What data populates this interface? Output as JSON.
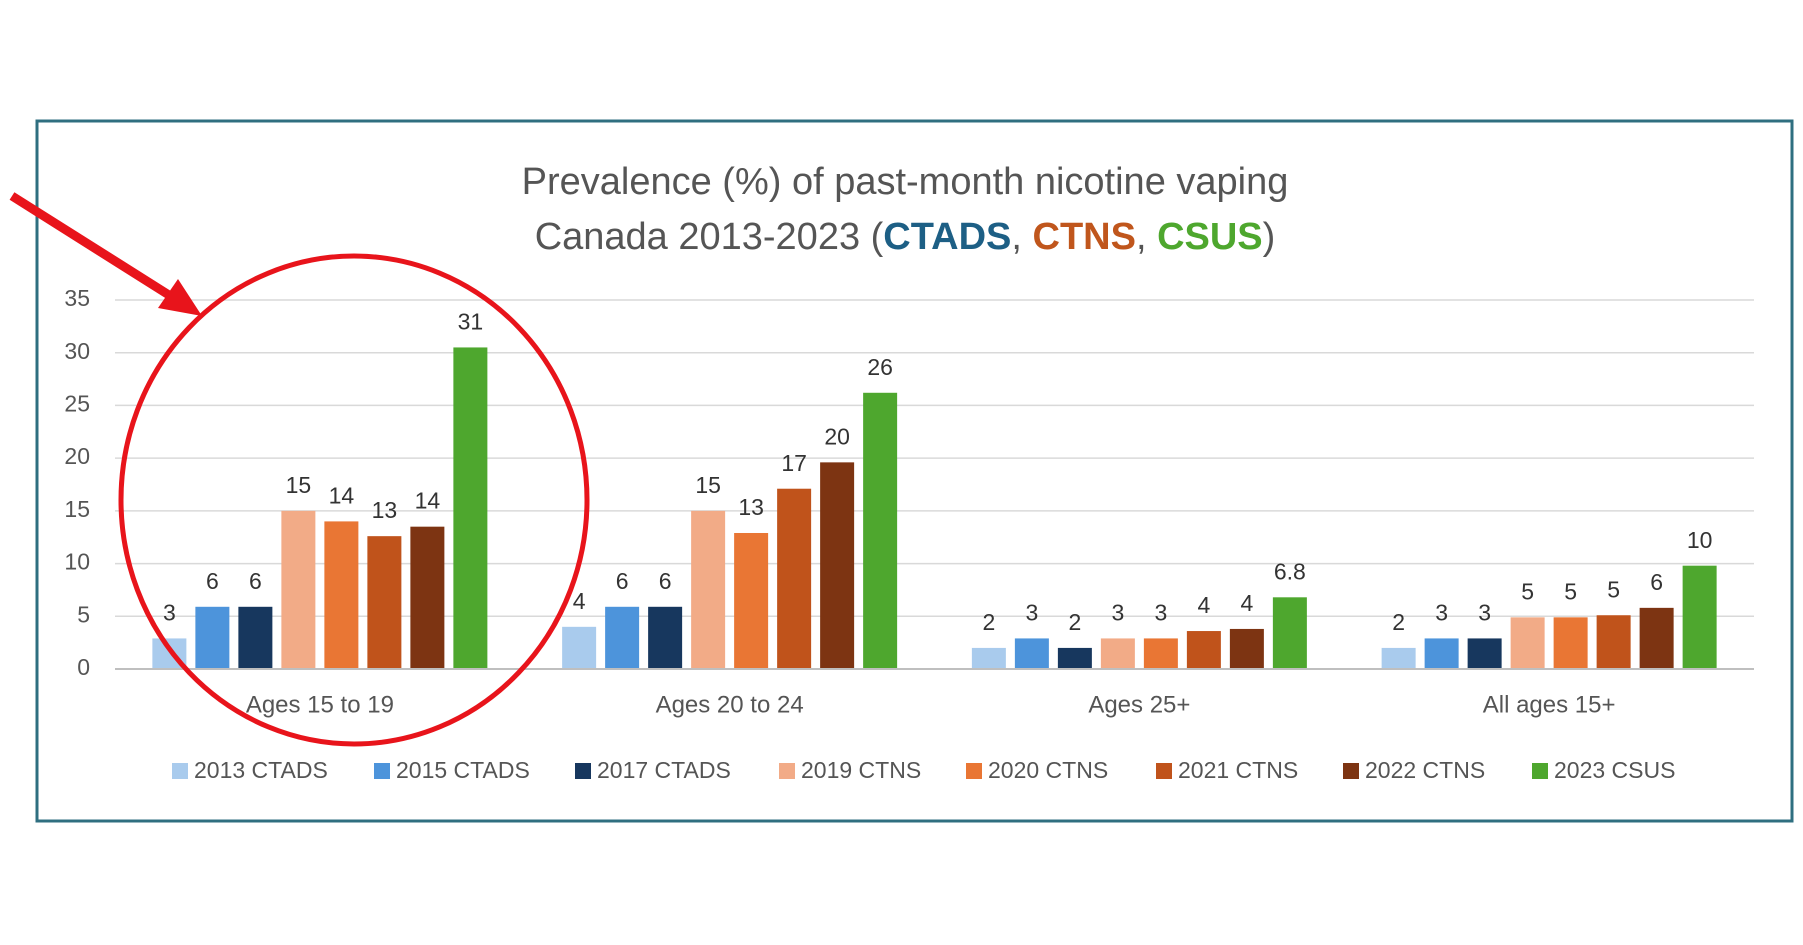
{
  "chart_data": {
    "type": "bar",
    "title": "Prevalence (%) of past-month nicotine vaping",
    "subtitle": [
      {
        "text": "Canada 2013-2023 ("
      },
      {
        "text": "CTADS",
        "color": "#1d5f85"
      },
      {
        "text": ", "
      },
      {
        "text": "CTNS",
        "color": "#c0561c"
      },
      {
        "text": ", "
      },
      {
        "text": "CSUS",
        "color": "#4ea72e"
      },
      {
        "text": ")"
      }
    ],
    "categories": [
      "Ages 15 to 19",
      "Ages 20 to 24",
      "Ages 25+",
      "All ages 15+"
    ],
    "series": [
      {
        "name": "2013 CTADS",
        "color": "#a9cbed",
        "values": [
          2.9,
          4.0,
          2.0,
          2.0
        ],
        "value_labels": [
          "3",
          "4",
          "2",
          "2"
        ]
      },
      {
        "name": "2015 CTADS",
        "color": "#4d94db",
        "values": [
          5.9,
          5.9,
          2.9,
          2.9
        ],
        "value_labels": [
          "6",
          "6",
          "3",
          "3"
        ]
      },
      {
        "name": "2017 CTADS",
        "color": "#17375e",
        "values": [
          5.9,
          5.9,
          2.0,
          2.9
        ],
        "value_labels": [
          "6",
          "6",
          "2",
          "3"
        ]
      },
      {
        "name": "2019 CTNS",
        "color": "#f2ab87",
        "values": [
          15.0,
          15.0,
          2.9,
          4.9
        ],
        "value_labels": [
          "15",
          "15",
          "3",
          "5"
        ]
      },
      {
        "name": "2020 CTNS",
        "color": "#e97634",
        "values": [
          14.0,
          12.9,
          2.9,
          4.9
        ],
        "value_labels": [
          "14",
          "13",
          "3",
          "5"
        ]
      },
      {
        "name": "2021 CTNS",
        "color": "#c0531b",
        "values": [
          12.6,
          17.1,
          3.6,
          5.1
        ],
        "value_labels": [
          "13",
          "17",
          "4",
          "5"
        ]
      },
      {
        "name": "2022 CTNS",
        "color": "#7d3412",
        "values": [
          13.5,
          19.6,
          3.8,
          5.8
        ],
        "value_labels": [
          "14",
          "20",
          "4",
          "6"
        ]
      },
      {
        "name": "2023 CSUS",
        "color": "#4ea72e",
        "values": [
          30.5,
          26.2,
          6.8,
          9.8
        ],
        "value_labels": [
          "31",
          "26",
          "6.8",
          "10"
        ]
      }
    ],
    "ylim": [
      0,
      35
    ],
    "yticks": [
      0,
      5,
      10,
      15,
      20,
      25,
      30,
      35
    ],
    "grid": true,
    "legend": "bottom"
  }
}
